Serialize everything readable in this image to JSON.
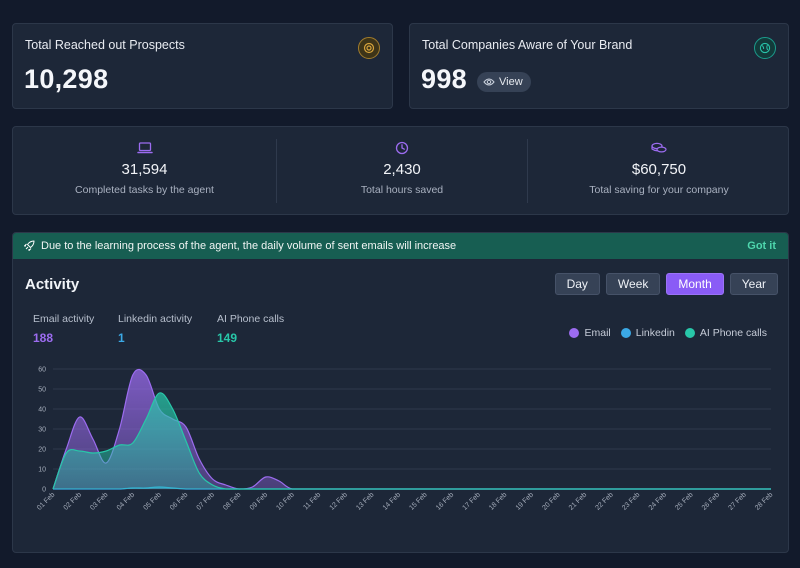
{
  "cards": {
    "prospects": {
      "title": "Total Reached out Prospects",
      "value": "10,298",
      "icon": "target-icon",
      "accent": "#d6a33c"
    },
    "companies": {
      "title": "Total Companies Aware of Your Brand",
      "value": "998",
      "view_label": "View",
      "icon": "globe-icon",
      "accent": "#28c2a8"
    }
  },
  "stats": [
    {
      "value": "31,594",
      "label": "Completed tasks by the agent",
      "icon": "laptop-icon"
    },
    {
      "value": "2,430",
      "label": "Total hours saved",
      "icon": "clock-icon"
    },
    {
      "value": "$60,750",
      "label": "Total saving for your company",
      "icon": "coins-icon"
    }
  ],
  "banner": {
    "message": "Due to the learning process of the agent, the daily volume of sent emails will increase",
    "action": "Got it"
  },
  "activity": {
    "title": "Activity",
    "ranges": [
      "Day",
      "Week",
      "Month",
      "Year"
    ],
    "active_range": "Month",
    "metrics": [
      {
        "label": "Email activity",
        "value": "188",
        "color": "#9c6cf0"
      },
      {
        "label": "Linkedin activity",
        "value": "1",
        "color": "#3ba9e6"
      },
      {
        "label": "AI Phone calls",
        "value": "149",
        "color": "#28c7a9"
      }
    ]
  },
  "chart_data": {
    "type": "area",
    "categories": [
      "01 Feb",
      "02 Feb",
      "03 Feb",
      "04 Feb",
      "05 Feb",
      "06 Feb",
      "07 Feb",
      "08 Feb",
      "09 Feb",
      "10 Feb",
      "11 Feb",
      "12 Feb",
      "13 Feb",
      "14 Feb",
      "15 Feb",
      "16 Feb",
      "17 Feb",
      "18 Feb",
      "19 Feb",
      "20 Feb",
      "21 Feb",
      "22 Feb",
      "23 Feb",
      "24 Feb",
      "25 Feb",
      "26 Feb",
      "27 Feb",
      "28 Feb"
    ],
    "x": [
      1,
      1.5,
      2,
      2.5,
      3,
      3.5,
      4,
      4.5,
      5,
      5.5,
      6,
      6.5,
      7,
      7.5,
      8,
      8.5,
      9,
      9.5,
      10,
      11,
      12,
      13,
      14,
      15,
      16,
      17,
      18,
      19,
      20,
      21,
      22,
      23,
      24,
      25,
      26,
      27,
      28
    ],
    "series": [
      {
        "name": "Email",
        "color": "#9c6cf0",
        "values": [
          0,
          20,
          36,
          25,
          13,
          30,
          57,
          57,
          40,
          35,
          31,
          15,
          5,
          2,
          0,
          1,
          6,
          4,
          0,
          0,
          0,
          0,
          0,
          0,
          0,
          0,
          0,
          0,
          0,
          0,
          0,
          0,
          0,
          0,
          0,
          0,
          0
        ]
      },
      {
        "name": "Linkedin",
        "color": "#3ba9e6",
        "values": [
          0,
          0,
          0,
          0,
          0,
          0,
          0.5,
          0.5,
          1,
          0.5,
          0,
          0,
          0,
          0,
          0,
          0,
          0,
          0,
          0,
          0,
          0,
          0,
          0,
          0,
          0,
          0,
          0,
          0,
          0,
          0,
          0,
          0,
          0,
          0,
          0,
          0,
          0
        ]
      },
      {
        "name": "AI Phone calls",
        "color": "#28c7a9",
        "values": [
          0,
          18,
          19,
          18,
          19,
          22,
          23,
          35,
          48,
          40,
          24,
          8,
          2,
          0,
          0,
          0,
          0,
          0,
          0,
          0,
          0,
          0,
          0,
          0,
          0,
          0,
          0,
          0,
          0,
          0,
          0,
          0,
          0,
          0,
          0,
          0,
          0
        ]
      }
    ],
    "y_ticks": [
      0,
      10,
      20,
      30,
      40,
      50,
      60
    ],
    "ylim": [
      0,
      60
    ],
    "xlim": [
      1,
      28
    ],
    "grid": true,
    "legend": "top-right"
  }
}
